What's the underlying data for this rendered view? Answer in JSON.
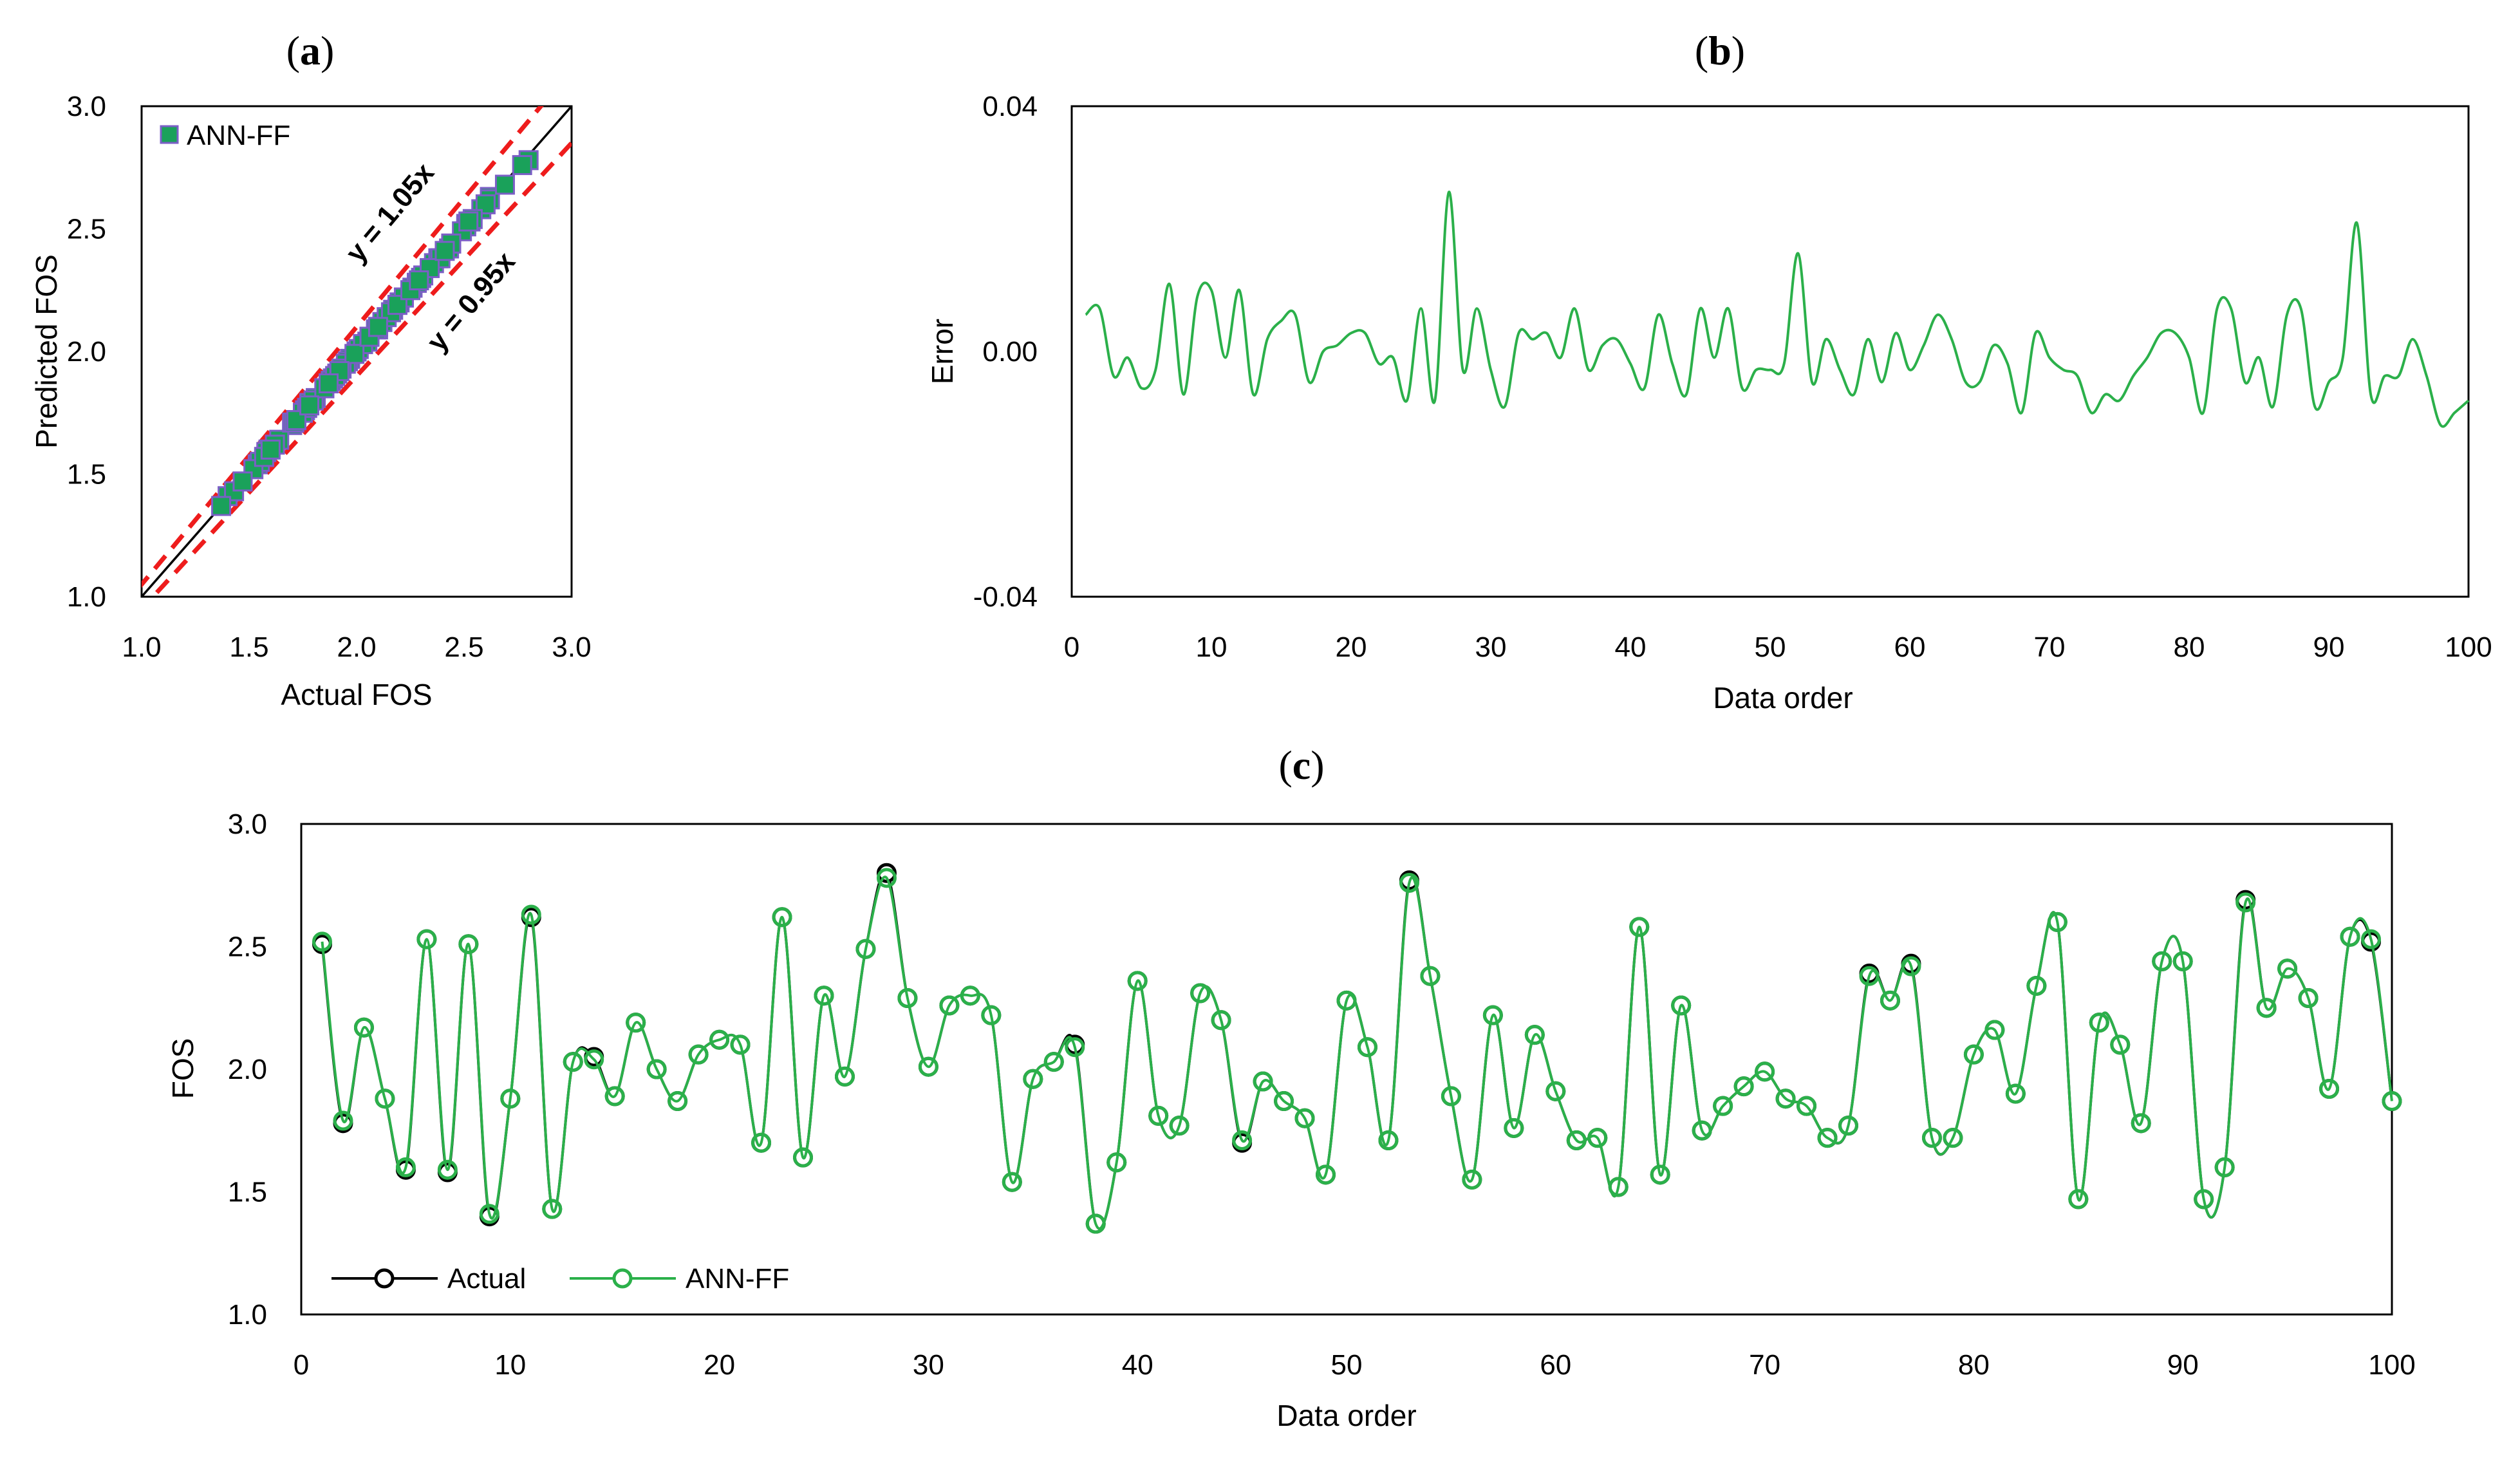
{
  "colors": {
    "green": "#2bb04a",
    "square_fill": "#1aa15a",
    "square_edge": "#7b5fc6",
    "red_dash": "#ee1c1c",
    "black": "#000000"
  },
  "chart_data": [
    {
      "id": "a",
      "panel_label": "a",
      "type": "scatter",
      "xlabel": "Actual FOS",
      "ylabel": "Predicted FOS",
      "xlim": [
        1.0,
        3.0
      ],
      "ylim": [
        1.0,
        3.0
      ],
      "xticks": [
        "1.0",
        "1.5",
        "2.0",
        "2.5",
        "3.0"
      ],
      "yticks": [
        "1.0",
        "1.5",
        "2.0",
        "2.5",
        "3.0"
      ],
      "legend": "ANN-FF",
      "legend_position": "top-left",
      "annotations": [
        "y = 1.05x",
        "y = 0.95x"
      ],
      "lines": [
        {
          "name": "y = x",
          "slope": 1.0,
          "style": "solid"
        },
        {
          "name": "y = 1.05x",
          "slope": 1.05,
          "style": "dashed"
        },
        {
          "name": "y = 0.95x",
          "slope": 0.95,
          "style": "dashed"
        }
      ]
    },
    {
      "id": "b",
      "panel_label": "b",
      "type": "line",
      "xlabel": "Data order",
      "ylabel": "Error",
      "xlim": [
        0,
        100
      ],
      "ylim": [
        -0.04,
        0.04
      ],
      "xticks": [
        "0",
        "10",
        "20",
        "30",
        "40",
        "50",
        "60",
        "70",
        "80",
        "90",
        "100"
      ],
      "yticks": [
        "-0.04",
        "0.00",
        "0.04"
      ],
      "series": [
        {
          "name": "Error",
          "values": [
            0.006,
            0.007,
            -0.004,
            -0.001,
            -0.006,
            -0.003,
            0.011,
            -0.007,
            0.009,
            0.01,
            -0.001,
            0.01,
            -0.007,
            0.002,
            0.005,
            0.006,
            -0.005,
            0.0,
            0.001,
            0.003,
            0.003,
            -0.002,
            -0.001,
            -0.008,
            0.007,
            -0.008,
            0.026,
            -0.003,
            0.007,
            -0.003,
            -0.009,
            0.003,
            0.002,
            0.003,
            -0.001,
            0.007,
            -0.003,
            0.001,
            0.002,
            -0.002,
            -0.006,
            0.006,
            -0.002,
            -0.007,
            0.007,
            -0.001,
            0.007,
            -0.006,
            -0.003,
            -0.003,
            -0.002,
            0.016,
            -0.005,
            0.002,
            -0.003,
            -0.007,
            0.002,
            -0.005,
            0.003,
            -0.003,
            0.001,
            0.006,
            0.002,
            -0.005,
            -0.005,
            0.001,
            -0.002,
            -0.01,
            0.003,
            -0.001,
            -0.003,
            -0.004,
            -0.01,
            -0.007,
            -0.008,
            -0.004,
            -0.001,
            0.003,
            0.003,
            -0.001,
            -0.01,
            0.007,
            0.007,
            -0.005,
            -0.001,
            -0.009,
            0.006,
            0.007,
            -0.009,
            -0.005,
            -0.001,
            0.021,
            -0.007,
            -0.004,
            -0.004,
            0.002,
            -0.004,
            -0.012,
            -0.01,
            -0.008
          ]
        }
      ]
    },
    {
      "id": "c",
      "panel_label": "c",
      "type": "line",
      "xlabel": "Data order",
      "ylabel": "FOS",
      "xlim": [
        0,
        100
      ],
      "ylim": [
        1.0,
        3.0
      ],
      "xticks": [
        "0",
        "10",
        "20",
        "30",
        "40",
        "50",
        "60",
        "70",
        "80",
        "90",
        "100"
      ],
      "yticks": [
        "1.0",
        "1.5",
        "2.0",
        "2.5",
        "3.0"
      ],
      "legend_position": "bottom-left",
      "series": [
        {
          "name": "Actual",
          "values": [
            2.51,
            1.78,
            2.17,
            1.88,
            1.59,
            2.53,
            1.58,
            2.51,
            1.4,
            1.88,
            2.62,
            1.43,
            2.03,
            2.05,
            1.89,
            2.19,
            2.0,
            1.87,
            2.06,
            2.12,
            2.1,
            1.7,
            2.62,
            1.64,
            2.3,
            1.97,
            2.49,
            2.8,
            2.29,
            2.01,
            2.26,
            2.3,
            2.22,
            1.54,
            1.96,
            2.03,
            2.1,
            1.37,
            1.62,
            2.36,
            1.81,
            1.77,
            2.31,
            2.2,
            1.7,
            1.95,
            1.87,
            1.8,
            1.57,
            2.28,
            2.09,
            1.71,
            2.77,
            2.38,
            1.89,
            1.55,
            2.22,
            1.76,
            2.14,
            1.91,
            1.71,
            1.72,
            1.52,
            2.58,
            1.57,
            2.26,
            1.75,
            1.85,
            1.93,
            1.99,
            1.88,
            1.85,
            1.72,
            1.77,
            2.39,
            2.28,
            2.43,
            1.72,
            1.72,
            2.06,
            2.16,
            1.9,
            2.34,
            2.6,
            1.47,
            2.19,
            2.1,
            1.78,
            2.44,
            2.44,
            1.47,
            1.6,
            2.69,
            2.25,
            2.41,
            2.29,
            1.92,
            2.54,
            2.52,
            1.87
          ]
        },
        {
          "name": "ANN-FF",
          "values": [
            2.52,
            1.79,
            2.17,
            1.88,
            1.6,
            2.53,
            1.59,
            2.51,
            1.41,
            1.88,
            2.63,
            1.43,
            2.03,
            2.04,
            1.89,
            2.19,
            2.0,
            1.87,
            2.06,
            2.12,
            2.1,
            1.7,
            2.62,
            1.64,
            2.3,
            1.97,
            2.49,
            2.78,
            2.29,
            2.01,
            2.26,
            2.3,
            2.22,
            1.54,
            1.96,
            2.03,
            2.09,
            1.37,
            1.62,
            2.36,
            1.81,
            1.77,
            2.31,
            2.2,
            1.71,
            1.95,
            1.87,
            1.8,
            1.57,
            2.28,
            2.09,
            1.71,
            2.76,
            2.38,
            1.89,
            1.55,
            2.22,
            1.76,
            2.14,
            1.91,
            1.71,
            1.72,
            1.52,
            2.58,
            1.57,
            2.26,
            1.75,
            1.85,
            1.93,
            1.99,
            1.88,
            1.85,
            1.72,
            1.77,
            2.38,
            2.28,
            2.42,
            1.72,
            1.72,
            2.06,
            2.16,
            1.9,
            2.34,
            2.6,
            1.47,
            2.19,
            2.1,
            1.78,
            2.44,
            2.44,
            1.47,
            1.6,
            2.68,
            2.25,
            2.41,
            2.29,
            1.92,
            2.54,
            2.53,
            1.87
          ]
        }
      ]
    }
  ]
}
